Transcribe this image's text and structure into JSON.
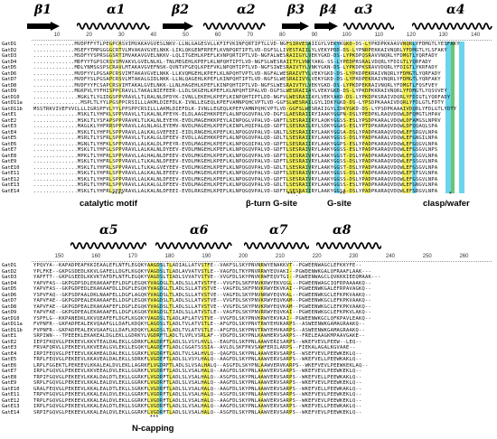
{
  "top": {
    "secondary_structure": [
      {
        "kind": "strand",
        "label": "β1"
      },
      {
        "kind": "helix",
        "label": "α1"
      },
      {
        "kind": "strand",
        "label": "β2"
      },
      {
        "kind": "helix",
        "label": "α2"
      },
      {
        "kind": "strand",
        "label": "β3"
      },
      {
        "kind": "strand",
        "label": "β4"
      },
      {
        "kind": "helix",
        "label": "α3"
      },
      {
        "kind": "helix",
        "label": "α4"
      }
    ],
    "ruler": [
      "10",
      "20",
      "30",
      "40",
      "50",
      "60",
      "70",
      "80",
      "90",
      "100",
      "110",
      "120",
      "130",
      "140"
    ],
    "sequences": [
      {
        "name": "GatD1",
        "seq": ".............MVDPFFYTLPEGPCRSVIMVAKAVGVESLNKV-LLNLGAGESVLLKFIFVKINFQRTIPTLLVD-NGFSIRVESAIIGYLVEKYKGKD-DS-LYPKDPKKAAVVNQRLYFDMGTLYESFAKY"
      },
      {
        "name": "GatD2",
        "seq": ".............MSEFYTMPGGGGCRTVLMVAKAVGVELNKK-LIKLQKGENFRPEFLKVNPQRTIPTLVD-DGFSLLIVESTAIILYLVEKYPDD-DS-LYPNRPEKKAIVNQRLYFDMGTLYLSFAKY"
      },
      {
        "name": "GatD3",
        "seq": ".............MSDFYYSPRSGGSRTIMVAKAVGVELNKKV-LQLITGEHLKPEFLKVNPQRTIPTLVD-NGFALWESRAIIGYLVEKYGKD-DS-LYPKDPQSRAVVNQRLYFDMGTLYQRFADY"
      },
      {
        "name": "GatD4",
        "seq": ".............MDFYYTGPSCRSVIMVAKVLGVELNLKL-TNLMEGEHLKPEFLKLNPQHTIPTLVD-NGFSLWESRAIITYLVNKYAKG-SS-LYPEDPRSRALVDQRLYFDIGTLYQRFADY"
      },
      {
        "name": "GatD5",
        "seq": ".............MDLYNMSGSPSCRAVLMTAKAVGVEFNSK-QVNTVFGEQLKPEFVKLNPQHTIPTLVD-NGFSIWESRAIVTYLVNKYGKN-DS-LYPKDPKSRAVVDQRLYFDIGTLYKRFADY"
      },
      {
        "name": "GatD6",
        "seq": ".............MVDFYYLPGSAPCRSVIMTAKAVGVELNKK-LLKVQMGEHLKPEFLKLNPQHTVPTLVD-NGFALWESRAIVTYLVEKYGKD-DS-LYPKDPEKRAIVNQRLYFDMGTLYQRFADY"
      },
      {
        "name": "GatD7",
        "seq": ".............MVDFYSLPGSAPCRSVLMTAKALGIDLNKK-LLNLQAGEHLKPEFLKINPQHTIPTLVD-NGFSLWESRAIIVYLVEKYGKD-DS-LYPKDPEKRAIVNQRLYFDMGTLYQRFAKY"
      },
      {
        "name": "GatD8",
        "seq": ".............MVDFYYFCSAPCRSVIMTAKALGVELNKK-LLNLHAGEHLKPEFLKINPQHTIPTLVD-NGFSLWESRAIVTYLVEKYGKD-DS-LYPKDPEKRAIVNQRLYFDMGTLFQSFVEY"
      },
      {
        "name": "GatD9",
        "seq": ".............MGKPVLYYFHISPPCRAVLLTAKALNIEFEER-LLDLSKGEHLKPEFLKLNPQHTIPALVD-DGFSLWESRAIIAYLVEKYGKD-DS-LYPKDPKKRAIVNQRLYFDMGTLYQSVVEY"
      },
      {
        "name": "GatD10",
        "seq": "..............MGKLTLYGIDGSPPVRAVLLTLRALNLDFDYK-IVNLLEKEHLKPEFLKINPQHTIPTLDD-NGFVLWESRAIIAYLVEKYAKD-DS-LYPKDPKSRAIVDQRLYFDIGTLYQRFADY"
      },
      {
        "name": "GatD11a",
        "seq": "...............MSPLTLYYLPGSPPCRSILLLAKMLDIEFDLK-IVNLLEGEQLKPEFVAMNPQHCVPTLVD-GGFSLWESRAILGYLIDKYGKD-DS-LYPSDPKAAAIVDQRLYFDLGTLFDTY"
      },
      {
        "name": "GatD11b",
        "seq": "MSSTRKVIVEFVVCLLLIGRSPFVLYYLPPSPPCRSILLLAKMLDIEFDLK-IVNLLEGEQLKPEFVAMNPQHCVPTLVD-GGFSLWESRAIIGYLIDKYGKD-DS-LYPSDPKAAAIVDQRLYFDLGTLYDTY"
      },
      {
        "name": "GatE1",
        "seq": "..............MSKLTLYHFKLSPPVRAVLLTLKALNLPFEYK-ELDLAAGEHKKPEFLALNPQGQVPALVD-DGFSLAESRAIIRYIAAKYGGPN-DSLYPEDPKLRAQVDQWLDFQMGTLHPAV"
      },
      {
        "name": "GatE2",
        "seq": "..............MSKLTLYSFAPSPPVRAVKLTLKALNLEYEYK-EVDLMAGEHKKPEYLAINPQGLVPALVD-GNFTLSESRAIIRYLAQKYGGSS-ESLYPSDPKARALVDQWLDFAMGSLNPRV"
      },
      {
        "name": "GatE3",
        "seq": "..............MAGLKLYHFRRSPPVRAVLLALNLAGLEYEMV-NVDLMAGEHLKPEFLKINPLHQIPALQD-GDFTLSESRAILRYLSDKYGGAS-ESLYPTDPKARAQVDQWLDFQQAQLSPA"
      },
      {
        "name": "GatE4",
        "seq": "..............MSKLTLYHFPLSPPVRAVLLALKALGVEFEEI-EIDLRNGEHLKPEFLKLNPQGQVPALVD-GNLTLSESRAIIRYLAAKYGGSA-DSLYPADPKARAQVDQWLEFSRGVLNPA"
      },
      {
        "name": "GatE5",
        "seq": "..............MSRLTLYSFRLSPPVRAVLLTLKALGLDFEEV-EVDLLAGEHKKPEFLALNPQGQVPALQD-GDLTLSESRAIIRYLAAKYGGSS-DSLYPADPKARALVDQWLEFGNGILNPA"
      },
      {
        "name": "GatE6",
        "seq": "..............MGNLTLYHFKLSPPVRAVLLALKALDLPFEYR-EVDLMAGEHLKPEFLKLNPQGQIPALVD-GDFTLSESRAIIRYLAAKYGGPS-ESLYPADPKARAQVDQWLEFGQGVLNPA"
      },
      {
        "name": "GatE7",
        "seq": "..............MSKLTLYHFGLSPPVRAVLLALKALNLDYEEV-EVDLMNGEHLKPEFLKLNPQGQVPALVD-GDFTLSESRAIVRYLAAKYGGSS-ESLYPADPKARAQVDQWLEFGSGVLNPS"
      },
      {
        "name": "GatE8",
        "seq": "..............MPKLTLYHFRLSPPVRAVLLALHALNLDFEEV-EVDLMKGEHLKPEFLKLNPQGQVPALVD-GDFTLSESRAIVRYLAAKYGGST-DSLYPADPKARAQVDQWLEFGSGVLNPA"
      },
      {
        "name": "GatE9",
        "seq": "..............MSKLTLYHFRLSPPVRAVLLTLKALNLDFEEV-EVDLMKGEHLKPEFLKLNPQGQVPALVD-GDFTLSESRAIVRYLAAKYGGSS-DSLYPADPKARAQVDQWLEFSSGVLNPA"
      },
      {
        "name": "GatE10",
        "seq": "..............MSKLTLYHFRLSPPVRAVLLTLKALGVEYEEV-EVDLMKGEHLKPEFLKLNPQGQVPALVD-GDLTLSESRAIVRYLAAKYGGST-DSLYPADPKARAQVDQWLEFGSGVLNPA"
      },
      {
        "name": "GatE11",
        "seq": "..............MSKLTLYHFRLSPPVRAVLLALKALNLEFEEV-EVDLMKGEHLKPEFLKLNPQGQVPALVD-GDFTLSESRAIVRYLAAKYGGSS-DSLYPADPKARAQVDQWLEFSTGVLNPA"
      },
      {
        "name": "GatE12",
        "seq": "..............MSKLTLYHFRLSPPVRAVLLALKALNLDFEEV-EVDLMKGEHLKPEFLKLNPQGQVPALVD-GDFTLSESRAIVRYLAAKYGGSS-DSLYPADPKARAQVDQWLEFGSGVLNPA"
      },
      {
        "name": "GatE13",
        "seq": "..............MSRLTLYHFRLSPPVRAVLLALKALGLDFEEV-EVDLMAGEHLKPEFLKLNPQGQVPALVD-GDLTLSESRAIIRYLAAKYGGSS-ESLYPADPKARAQVDQWLEFGNGVLNPA"
      },
      {
        "name": "GatE14",
        "seq": "..............MSKLTLYHFRLSPPVRAVLLALKALNLDFEEI-EVDLRKGEHLKPEFLKLNPQGQVPALVD-GDFTLSESRAIIRYLAAKYGGSA-DSLYPADPKARAQVDQWLEFSRGVLNPA"
      }
    ],
    "motifs": [
      {
        "label": "catalytic motif",
        "stars": "****"
      },
      {
        "label": "β-turn G-site",
        "stars": "***.*"
      },
      {
        "label": "G-site",
        "stars": "**"
      },
      {
        "label": "clasp/wafer",
        "stars": "*"
      }
    ]
  },
  "bottom": {
    "secondary_structure": [
      {
        "kind": "helix",
        "label": "α5"
      },
      {
        "kind": "helix",
        "label": "α6"
      },
      {
        "kind": "helix",
        "label": "α7"
      },
      {
        "kind": "helix",
        "label": "α8"
      }
    ],
    "ruler": [
      "150",
      "160",
      "170",
      "180",
      "190",
      "200",
      "210",
      "220",
      "230",
      "240",
      "250",
      "260"
    ],
    "sequences": [
      {
        "name": "GatD1",
        "seq": "YPQVYA--KAPADPEAFKKIEAALEFLNTFLEGQKYAAGDSLTLADIALLATVSTFE--VAKFSLSKYPNVNRWYENAKKVT--PGWEENWAGCLEFKKYFE--"
      },
      {
        "name": "GatD2",
        "seq": "YPLFKE--GKPGSDEDLKKVLGAFELLDGFLKGQKYVAGDSLTLADLAVVATVSTLE--VAGFDLTKYPNVRRWYEQVAKI--PGWDENWKGALQFRAAFLAAK---"
      },
      {
        "name": "GatD3",
        "seq": "YAPFTT--GKPGSEEDLKKVKTAFDFLNTFLEGQKYVAGDSLTIADLSVVATVSTVE--VVGFDLSKYPNVKRWFEQVTGI--PGWEENWAGCLQVKKKIEEQMAAK---"
      },
      {
        "name": "GatD4",
        "seq": "YAPVFAS--GKPGDPSDLEKAKAAFEFLDGFLEGQKYVAGDGLTLADLSLLATVSTFE--VVGFDLSKFPNVKRWYEKVQGL--PGWEENWAGCIQFRPAAAAKQ--"
      },
      {
        "name": "GatD5",
        "seq": "YAPVFAS--GKPGDPEDLEKAKAAFDLLDGFLEGQKYVAGDGLTLADLSLLATVSTVE--VAGFDLSKFPNVKRWYEKVKAI--PGWEENWKGALEFRPAVAGKQ--"
      },
      {
        "name": "GatD6",
        "seq": "YSPVFAQ--GKPSDPAALDKLNAAFELLDGFLAGQKYVAGDSLTLADLSLLATVSTVE--VAGFDLSKYPNVNRWYEQVKAL--PGWEENWKGCLEFKPKVAAKQ--"
      },
      {
        "name": "GatD7",
        "seq": "YAPVFAE--GKPGDPEALEKAKAAFELLDGFLEGQKYVAGDSLTLADLSLLATVSTVE--VVGFDLSKYPNVKRWYEQVKAM--PGWEENWKGCLEFKPKVAAKQ--"
      },
      {
        "name": "GatD8",
        "seq": "YAPVFAE--GKPGDPEALEKAKAAFEFLDGFLEGQKYVAGDSLTLADLSLLATVSTVE--VVGFDLSKYPNVKRWYEQVKAM--PGWEENWKGCLEFKPKVAAKQ--"
      },
      {
        "name": "GatD9",
        "seq": "YAPVFAE--GKPGDPEALEKAKAAFELLDGFLKGQKYVAGDSLTIADLSLLATVSTLE--VAGFDLSKYPNVRRWYEQVKAI--PGWEENWKGCLEFKPKVLAKQ--"
      },
      {
        "name": "GatD10",
        "seq": "YSPFLG--KKPANEDKLKKVQEAFEFLDGFLKGQKYVAGDSLTLADLAFLATVSTVE--VVGFDLSKYPNVKRWYEKVKAI--PGWEENWKGCLQFKPAVLEAKQ--"
      },
      {
        "name": "GatD11a",
        "seq": "FVPNFR--GKPADPEALEKVQAAFGLLDAFLKDQKYLAGDSLTLADLTVLATVSTLE--AFGFDLSKYPNVTRWYEHVKARPS--ASWEENWKGAMAGRAAKQ--"
      },
      {
        "name": "GatD11b",
        "seq": "FVPNFR--GKPADPEALEKVQAAFGLLDAFLKDQKYLAGDSLTLADLTVLATVSTLE--AFGFDLSKYPNVTRWYEHVKARPS--ASWEENWKGAMAGRAAKQ--"
      },
      {
        "name": "GatE1",
        "seq": "SRPIWN---TPEEEKLEKAKEALDGLEKLLGDRKYLVGDRFTLADLTLVPLVSRLAF--VDGFDLSKYPNLKAWHERVSARPS--FRELEAAGKMPAAVGAKE--"
      },
      {
        "name": "GatE2",
        "seq": "IEPIFKQVGLPEKEEVLKKVTEALDALEKLLGDRKFLAGDRFTLADLSLVSYLHVLL--EAGFDLSKFPNLAAWVERISARPS--WKEFVEVLPEEW--LEQ--"
      },
      {
        "name": "GatE3",
        "seq": "FRVAFQRVLLPEKEEVLKKVEEALGVLEKLLEGQKYLAGDEFTLADLCGGATSSSIA--AVLDLSKFPKVSAWFERILARPS--FIEKALAGALKGVAAE--"
      },
      {
        "name": "GatE4",
        "seq": "IRPIFEQVGLPETEEVLKKAHEALDALEKLLSGRKFLVGDRFTLADLTVLSALHVLQ--QAGFDLSKYPNLAAWVERVSARPS--WSEFVEVLPEEWKEKLQ--"
      },
      {
        "name": "GatE5",
        "seq": "TRPLFEQVGLPEKEEVLKKAVEALDALEKLLSDRKFLVGDEFTLADLSLVSYLHALQ--AAGFDLSKYPNLAAWVERVSARPS--WKEFVELLPEEWKAKLQ--"
      },
      {
        "name": "GatE6",
        "seq": "LRPLFGGEKTLPEKEEVLKKALEALDVLEKLLAGRKFLVGDRFTLADLSLVSALHALQ--ASGFDLSKYPNLAAWVERVKARPS--WKEFVEVLPEEWKEKLAQ--"
      },
      {
        "name": "GatE7",
        "seq": "IRPLFGQVGLPEKEEVLKKVEEALDVLEKLLGGRKFLVGDRFTLADLSLVSALHALQ--AAGFDLSKYPNLAAWVERVSARPS--WKEFVEVLPEEWKEKLQ--"
      },
      {
        "name": "GatE8",
        "seq": "TRPIFGQVGLPEKEEVLKKALDALDTLEKLLGGRKFLVGDRFTLADLSLVSALHALQ--ASGFDLSKYPNLAAWVERVSARPS--WKEFVELLPEEWKAKLQ--"
      },
      {
        "name": "GatE9",
        "seq": "SRPLFGQVGLPEKEEVLKKALEALDVLEKLLGGRKFLVGDRFTLADLSLVSALHALQ--AAGFDLSKYPNLAAWVERVSARPS--WKEFVEVLPEEWKEKLQ--"
      },
      {
        "name": "GatE10",
        "seq": "GRALFEQVGLPEKEEVLKKALEALDTLEKLLSGRKFLVGDRFTLADLSLVSALHALQ--AAGFDLSKYPNLAAWVERVSARPS--WKEFVELLPEEWKAKLQ--"
      },
      {
        "name": "GatE11",
        "seq": "TRPVFGQVGLPEKEEVLKKALEALDVLEKLLGGRKFLVGDRFTLADLSLVSALHALQ--ASGFDLSKYPNLAAWVERVSARPS--WKEFVEVLPEEWKEKLQ--"
      },
      {
        "name": "GatE12",
        "seq": "TRPLFGQVGLPEKEEVLKKALEALDVLEKLLGGRKFLVGDRFTLADLSLVSALHALQ--AAGFDLSKYPNLAAWVERVSARPS--WKEFVEVLPEEWKEKLQ--"
      },
      {
        "name": "GatE13",
        "seq": "IRPLFGQVGLPEKEEVLKKALEALDTLEKLLSGRKFLVGDRFTLADLSLVSALHALQ--AAGFDLSKYPNLAAWVERVSARPS--WKEFVELLPEEWKAKLQ--"
      },
      {
        "name": "GatE14",
        "seq": "SRPIFGQVGLPEKEEVLKKALEALDVLEKLLGGRKFLVGDRFTLADLSLVSALHALQ--ASGFDLSKYPNLAAWVERVSARPS--WKEFVEVLPEEWKEKLQ--"
      }
    ],
    "motifs": [
      {
        "label": "N-capping",
        "stars": "***"
      }
    ]
  },
  "colors": {
    "yellow": "#f2ee2a",
    "cyan": "#3ac6e8",
    "green": "#37b34a"
  }
}
